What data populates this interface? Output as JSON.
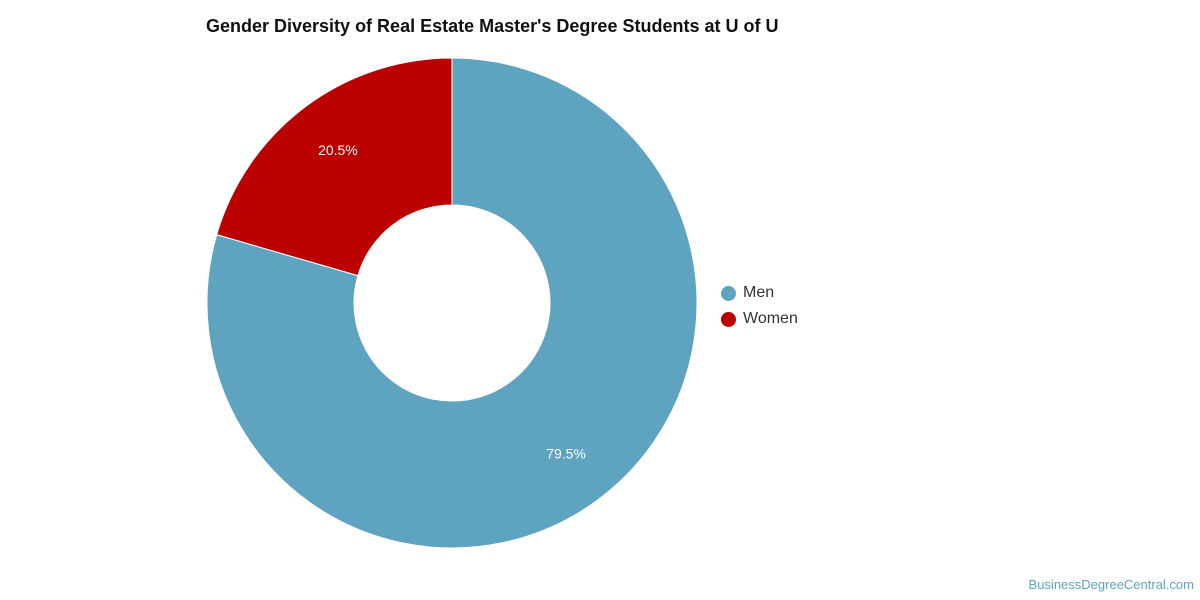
{
  "chart_data": {
    "type": "pie",
    "title": "Gender Diversity of Real Estate Master's Degree Students at U of U",
    "categories": [
      "Men",
      "Women"
    ],
    "values": [
      79.5,
      20.5
    ],
    "value_labels": [
      "79.5%",
      "20.5%"
    ],
    "colors": [
      "#5ea3c0",
      "#bb0000"
    ],
    "donut": true,
    "legend_position": "right"
  },
  "watermark": "BusinessDegreeCentral.com"
}
